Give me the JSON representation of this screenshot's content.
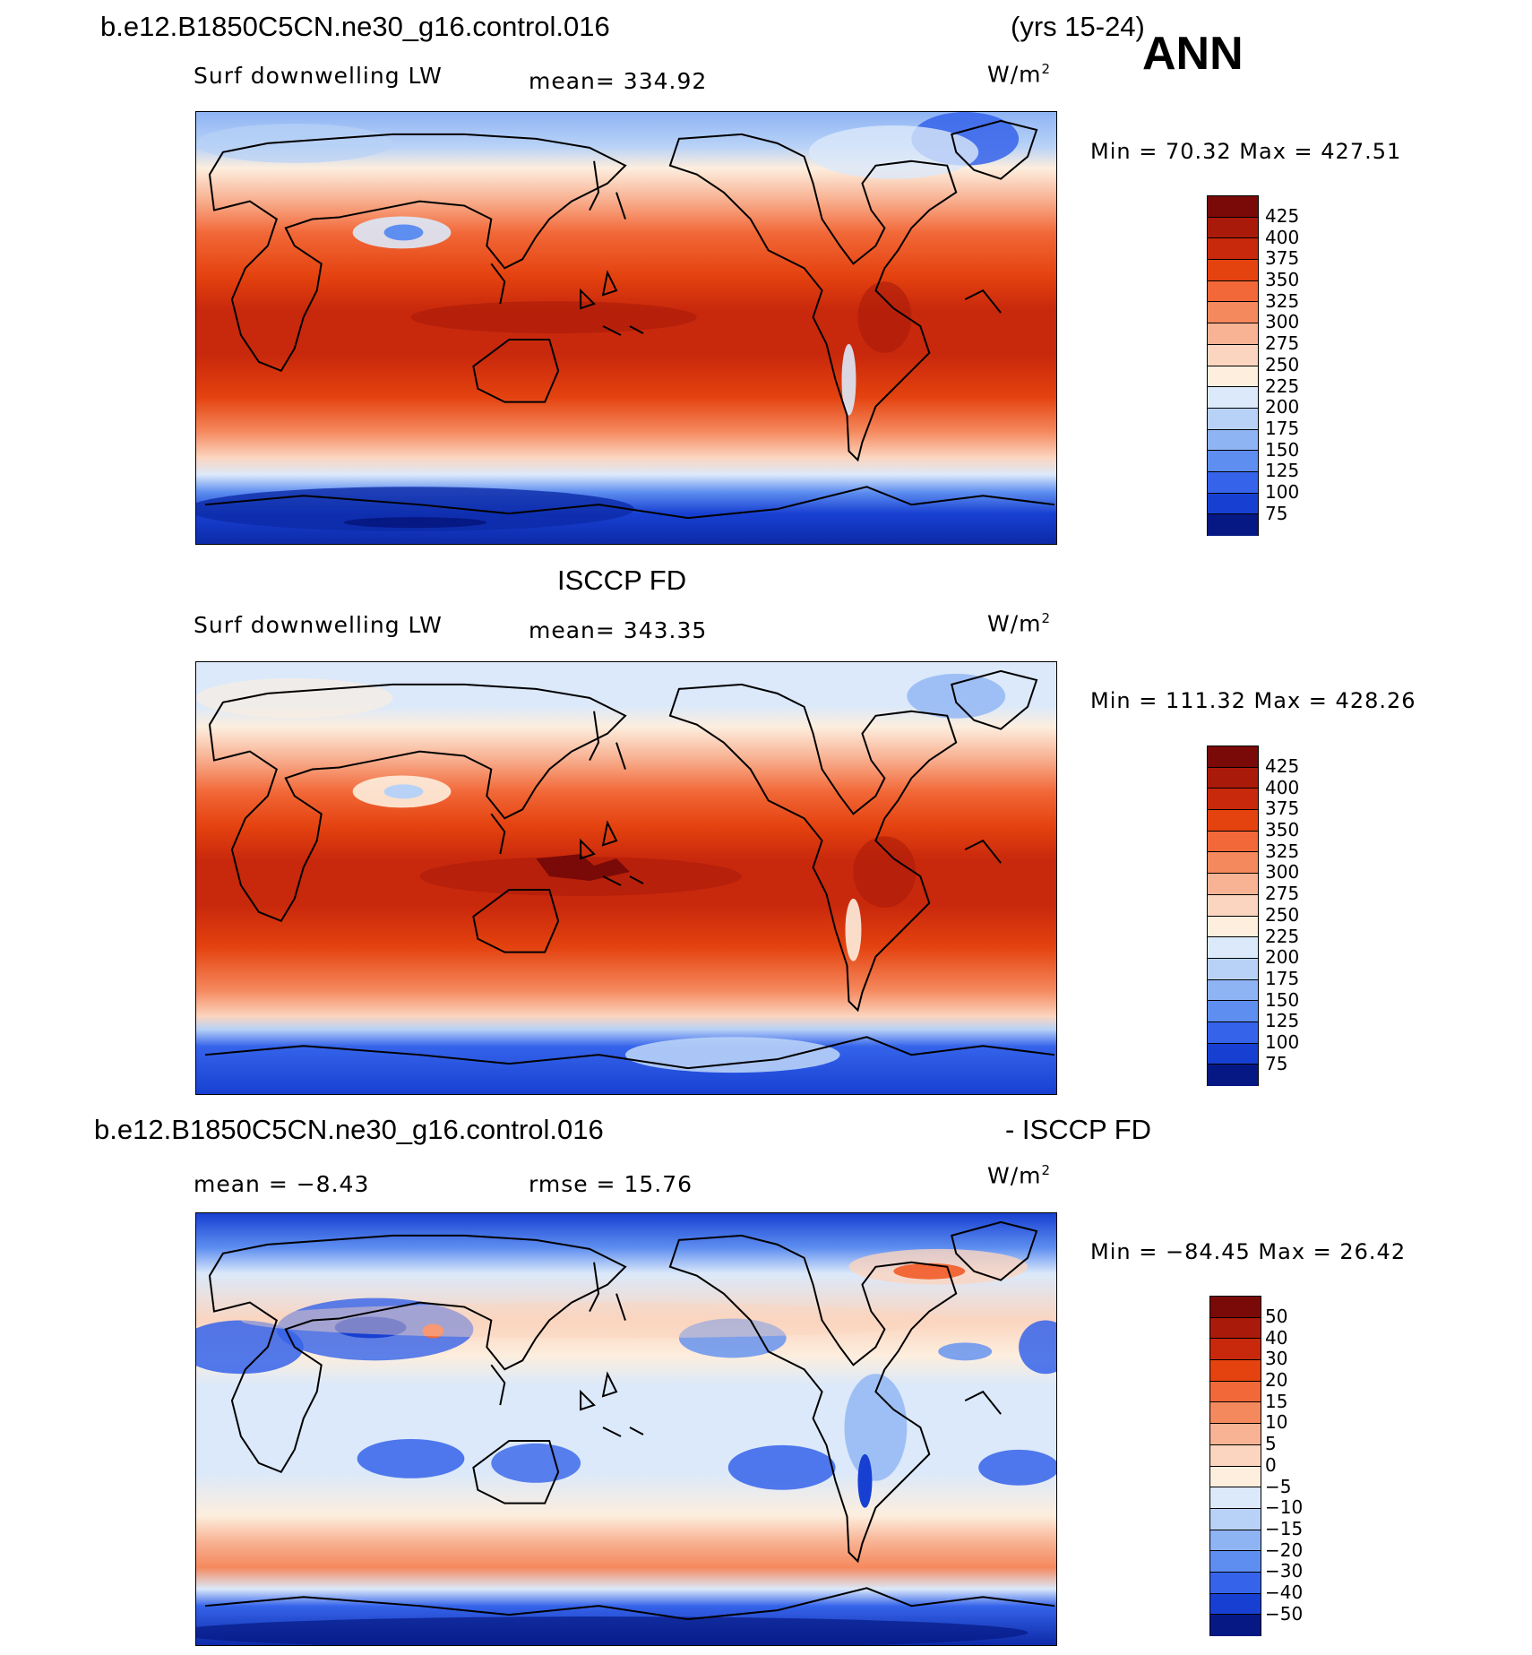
{
  "title_left": "b.e12.B1850C5CN.ne30_g16.control.016",
  "title_years": "(yrs 15-24)",
  "season": "ANN",
  "panels": [
    {
      "id": "model",
      "left_label": "Surf downwelling LW",
      "center_label": "mean= 334.92",
      "units": "W/m",
      "units_exp": "2",
      "min_max": "Min =  70.32 Max = 427.51",
      "colorbar": {
        "labels": [
          "425",
          "400",
          "375",
          "350",
          "325",
          "300",
          "275",
          "250",
          "225",
          "200",
          "175",
          "150",
          "125",
          "100",
          "75"
        ],
        "colors": [
          "#7a0a08",
          "#aa1a0a",
          "#c8280c",
          "#e4420f",
          "#f26838",
          "#f5895e",
          "#f8b394",
          "#fbd5bf",
          "#fdeede",
          "#dbe9fa",
          "#b8d2f7",
          "#8fb4f4",
          "#5e8ef0",
          "#3563ea",
          "#1740d2",
          "#0d2aa8",
          "#061883"
        ]
      }
    },
    {
      "id": "obs",
      "heading": "ISCCP FD",
      "left_label": "Surf downwelling LW",
      "center_label": "mean= 343.35",
      "units": "W/m",
      "units_exp": "2",
      "min_max": "Min = 111.32 Max = 428.26",
      "colorbar": {
        "labels": [
          "425",
          "400",
          "375",
          "350",
          "325",
          "300",
          "275",
          "250",
          "225",
          "200",
          "175",
          "150",
          "125",
          "100",
          "75"
        ],
        "colors": [
          "#7a0a08",
          "#aa1a0a",
          "#c8280c",
          "#e4420f",
          "#f26838",
          "#f5895e",
          "#f8b394",
          "#fbd5bf",
          "#fdeede",
          "#dbe9fa",
          "#b8d2f7",
          "#8fb4f4",
          "#5e8ef0",
          "#3563ea",
          "#1740d2",
          "#0d2aa8",
          "#061883"
        ]
      }
    },
    {
      "id": "diff",
      "heading_left": "b.e12.B1850C5CN.ne30_g16.control.016",
      "heading_right": "- ISCCP FD",
      "left_label": "mean =  −8.43",
      "center_label": "rmse =   15.76",
      "units": "W/m",
      "units_exp": "2",
      "min_max": "Min = −84.45 Max =  26.42",
      "colorbar": {
        "labels": [
          "50",
          "40",
          "30",
          "20",
          "15",
          "10",
          "5",
          "0",
          "−5",
          "−10",
          "−15",
          "−20",
          "−30",
          "−40",
          "−50"
        ],
        "colors": [
          "#7a0a08",
          "#aa1a0a",
          "#c8280c",
          "#e4420f",
          "#f26838",
          "#f5895e",
          "#f8b394",
          "#fbd5bf",
          "#fdeede",
          "#dbe9fa",
          "#b8d2f7",
          "#8fb4f4",
          "#5e8ef0",
          "#3563ea",
          "#1740d2",
          "#0d2aa8",
          "#061883"
        ]
      }
    }
  ]
}
